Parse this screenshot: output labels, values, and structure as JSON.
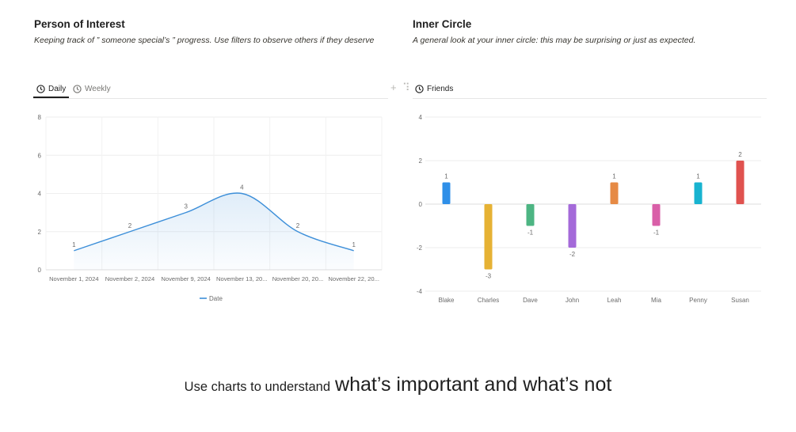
{
  "left_panel": {
    "title": "Person of Interest",
    "description": "Keeping track of ” someone special’s ” progress. Use filters to observe others if they deserve",
    "tabs": [
      {
        "label": "Daily",
        "icon": "clock-icon",
        "active": true
      },
      {
        "label": "Weekly",
        "icon": "clock-icon",
        "active": false
      }
    ]
  },
  "right_panel": {
    "title": "Inner Circle",
    "description": "A general look at your inner circle: this may be surprising or just as expected.",
    "tabs": [
      {
        "label": "Friends",
        "icon": "clock-icon",
        "active": true
      }
    ],
    "toolbar": {
      "add_icon": "+",
      "drag_icon": "⠹"
    }
  },
  "caption": {
    "small": "Use charts to understand",
    "big": "what’s important and what’s not"
  },
  "chart_data": [
    {
      "type": "area",
      "categories": [
        "November 1, 2024",
        "November 2, 2024",
        "November 9, 2024",
        "November 13, 20...",
        "November 20, 20...",
        "November 22, 20..."
      ],
      "series": [
        {
          "name": "Date",
          "values": [
            1,
            2,
            3,
            4,
            2,
            1
          ],
          "color": "#3d8fd9"
        }
      ],
      "ylim": [
        0,
        8
      ],
      "yticks": [
        0,
        2,
        4,
        6,
        8
      ],
      "grid": true,
      "legend": "bottom"
    },
    {
      "type": "bar",
      "categories": [
        "Blake",
        "Charles",
        "Dave",
        "John",
        "Leah",
        "Mia",
        "Penny",
        "Susan"
      ],
      "values": [
        1,
        -3,
        -1,
        -2,
        1,
        -1,
        1,
        2
      ],
      "colors": [
        "#2f8fe8",
        "#e6b234",
        "#4db583",
        "#a46ad9",
        "#e68a45",
        "#d95fa8",
        "#18b3d0",
        "#e0524f"
      ],
      "ylim": [
        -4,
        4
      ],
      "yticks": [
        -4,
        -2,
        0,
        2,
        4
      ],
      "grid": true
    }
  ]
}
